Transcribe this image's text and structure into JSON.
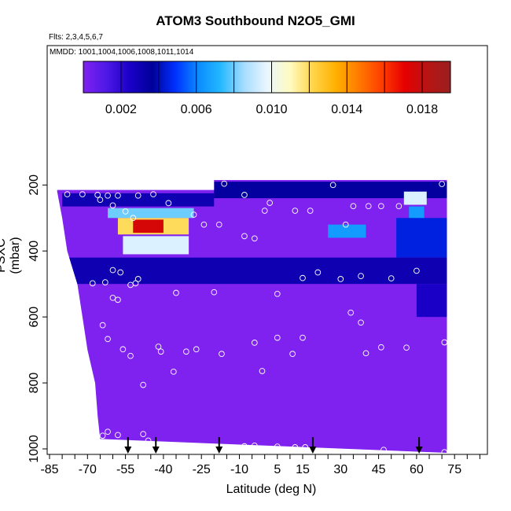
{
  "title": "ATOM3 Southbound N2O5_GMI",
  "flights_note": "Flts: 2,3,4,5,6,7",
  "mmdd_note": "MMDD: 1001,1004,1006,1008,1011,1014",
  "chart_data": {
    "type": "heatmap",
    "title": "ATOM3 Southbound N2O5_GMI",
    "xlabel": "Latitude (deg N)",
    "ylabel": "PSXC (mbar)",
    "xlim": [
      -85,
      85
    ],
    "ylim": [
      1000,
      0
    ],
    "x_tick_labels": [
      "-85",
      "-70",
      "-55",
      "-40",
      "-25",
      "-10",
      "5",
      "15",
      "30",
      "45",
      "60",
      "75"
    ],
    "x_ticks": [
      -85,
      -70,
      -55,
      -40,
      -25,
      -10,
      5,
      15,
      30,
      45,
      60,
      75
    ],
    "y_tick_labels": [
      "200",
      "400",
      "600",
      "800",
      "1000"
    ],
    "y_ticks": [
      200,
      400,
      600,
      800,
      1000
    ],
    "colorbar": {
      "range": [
        0,
        0.0195
      ],
      "tick_labels": [
        "0.002",
        "0.006",
        "0.010",
        "0.014",
        "0.018"
      ],
      "ticks": [
        0.002,
        0.006,
        0.01,
        0.014,
        0.018
      ],
      "colors": [
        "#7f22f0",
        "#4e18e6",
        "#1b00c8",
        "#000099",
        "#0030ff",
        "#0a8cff",
        "#25b9ff",
        "#a6dcff",
        "#eaf6ff",
        "#fffbc0",
        "#ffd54a",
        "#ffb000",
        "#ff7b00",
        "#ff3d00",
        "#e60000",
        "#b81414",
        "#9a1f1f"
      ]
    },
    "background_value": 0.0,
    "curtain_north_edge_lat": 72,
    "curtain_south_edge_by_pressure": [
      [
        220,
        -82
      ],
      [
        300,
        -80
      ],
      [
        400,
        -78
      ],
      [
        500,
        -74
      ],
      [
        600,
        -72
      ],
      [
        700,
        -70
      ],
      [
        800,
        -67
      ],
      [
        900,
        -66
      ],
      [
        970,
        -65
      ]
    ],
    "curtain_top_by_latitude": [
      [
        -82,
        215
      ],
      [
        -20,
        215
      ],
      [
        -20,
        185
      ],
      [
        72,
        185
      ]
    ],
    "features": [
      {
        "lat_range": [
          -62,
          -28
        ],
        "p_range": [
          270,
          300
        ],
        "value": 0.008
      },
      {
        "lat_range": [
          -58,
          -30
        ],
        "p_range": [
          300,
          350
        ],
        "value": 0.012
      },
      {
        "lat_range": [
          -52,
          -40
        ],
        "p_range": [
          305,
          345
        ],
        "value": 0.0175
      },
      {
        "lat_range": [
          -56,
          -30
        ],
        "p_range": [
          355,
          410
        ],
        "value": 0.0095
      },
      {
        "lat_range": [
          -80,
          -20
        ],
        "p_range": [
          225,
          265
        ],
        "value": 0.003
      },
      {
        "lat_range": [
          -20,
          72
        ],
        "p_range": [
          190,
          240
        ],
        "value": 0.0035
      },
      {
        "lat_range": [
          55,
          64
        ],
        "p_range": [
          220,
          260
        ],
        "value": 0.0095
      },
      {
        "lat_range": [
          57,
          63
        ],
        "p_range": [
          265,
          310
        ],
        "value": 0.0065
      },
      {
        "lat_range": [
          52,
          72
        ],
        "p_range": [
          300,
          420
        ],
        "value": 0.0045
      },
      {
        "lat_range": [
          25,
          40
        ],
        "p_range": [
          320,
          360
        ],
        "value": 0.0065
      },
      {
        "lat_range": [
          -80,
          72
        ],
        "p_range": [
          420,
          500
        ],
        "value": 0.003
      },
      {
        "lat_range": [
          60,
          72
        ],
        "p_range": [
          500,
          600
        ],
        "value": 0.0025
      }
    ],
    "sample_points": [
      {
        "lat": -83,
        "p": 228
      },
      {
        "lat": -78,
        "p": 228
      },
      {
        "lat": -72,
        "p": 228
      },
      {
        "lat": -66,
        "p": 230
      },
      {
        "lat": -65,
        "p": 245
      },
      {
        "lat": -62,
        "p": 232
      },
      {
        "lat": -58,
        "p": 232
      },
      {
        "lat": -50,
        "p": 232
      },
      {
        "lat": -44,
        "p": 228
      },
      {
        "lat": -38,
        "p": 255
      },
      {
        "lat": -60,
        "p": 262
      },
      {
        "lat": -55,
        "p": 280
      },
      {
        "lat": -52,
        "p": 300
      },
      {
        "lat": -28,
        "p": 290
      },
      {
        "lat": -24,
        "p": 320
      },
      {
        "lat": -18,
        "p": 320
      },
      {
        "lat": -16,
        "p": 196
      },
      {
        "lat": -8,
        "p": 230
      },
      {
        "lat": 0,
        "p": 278
      },
      {
        "lat": 2,
        "p": 254
      },
      {
        "lat": -8,
        "p": 355
      },
      {
        "lat": -4,
        "p": 362
      },
      {
        "lat": 12,
        "p": 278
      },
      {
        "lat": 18,
        "p": 278
      },
      {
        "lat": 27,
        "p": 200
      },
      {
        "lat": 35,
        "p": 264
      },
      {
        "lat": 41,
        "p": 264
      },
      {
        "lat": 46,
        "p": 264
      },
      {
        "lat": 53,
        "p": 264
      },
      {
        "lat": 32,
        "p": 320
      },
      {
        "lat": 70,
        "p": 197
      },
      {
        "lat": -68,
        "p": 498
      },
      {
        "lat": -63,
        "p": 495
      },
      {
        "lat": -60,
        "p": 458
      },
      {
        "lat": -57,
        "p": 465
      },
      {
        "lat": -53,
        "p": 503
      },
      {
        "lat": -51,
        "p": 498
      },
      {
        "lat": -50,
        "p": 485
      },
      {
        "lat": -60,
        "p": 542
      },
      {
        "lat": -58,
        "p": 548
      },
      {
        "lat": -35,
        "p": 527
      },
      {
        "lat": -20,
        "p": 525
      },
      {
        "lat": 5,
        "p": 530
      },
      {
        "lat": 15,
        "p": 482
      },
      {
        "lat": 21,
        "p": 465
      },
      {
        "lat": 30,
        "p": 485
      },
      {
        "lat": 38,
        "p": 476
      },
      {
        "lat": 50,
        "p": 483
      },
      {
        "lat": 60,
        "p": 460
      },
      {
        "lat": 34,
        "p": 587
      },
      {
        "lat": 38,
        "p": 617
      },
      {
        "lat": -64,
        "p": 625
      },
      {
        "lat": -62,
        "p": 667
      },
      {
        "lat": -56,
        "p": 698
      },
      {
        "lat": -53,
        "p": 718
      },
      {
        "lat": -42,
        "p": 690
      },
      {
        "lat": -41,
        "p": 705
      },
      {
        "lat": -31,
        "p": 705
      },
      {
        "lat": -27,
        "p": 698
      },
      {
        "lat": -17,
        "p": 712
      },
      {
        "lat": -4,
        "p": 678
      },
      {
        "lat": 5,
        "p": 663
      },
      {
        "lat": 15,
        "p": 663
      },
      {
        "lat": 11,
        "p": 712
      },
      {
        "lat": 40,
        "p": 710
      },
      {
        "lat": 46,
        "p": 692
      },
      {
        "lat": 56,
        "p": 693
      },
      {
        "lat": 71,
        "p": 677
      },
      {
        "lat": -36,
        "p": 766
      },
      {
        "lat": -1,
        "p": 764
      },
      {
        "lat": -48,
        "p": 806
      },
      {
        "lat": -62,
        "p": 948
      },
      {
        "lat": -64,
        "p": 960
      },
      {
        "lat": -58,
        "p": 958
      },
      {
        "lat": -54,
        "p": 990
      },
      {
        "lat": -48,
        "p": 955
      },
      {
        "lat": -46,
        "p": 975
      },
      {
        "lat": -44,
        "p": 1005
      },
      {
        "lat": -8,
        "p": 992
      },
      {
        "lat": -4,
        "p": 990
      },
      {
        "lat": 5,
        "p": 993
      },
      {
        "lat": 12,
        "p": 995
      },
      {
        "lat": 16,
        "p": 995
      },
      {
        "lat": 36,
        "p": 1010
      },
      {
        "lat": 47,
        "p": 1003
      },
      {
        "lat": 71,
        "p": 1010
      }
    ],
    "arrows_lat": [
      -54,
      -43,
      -18,
      19,
      61
    ]
  }
}
